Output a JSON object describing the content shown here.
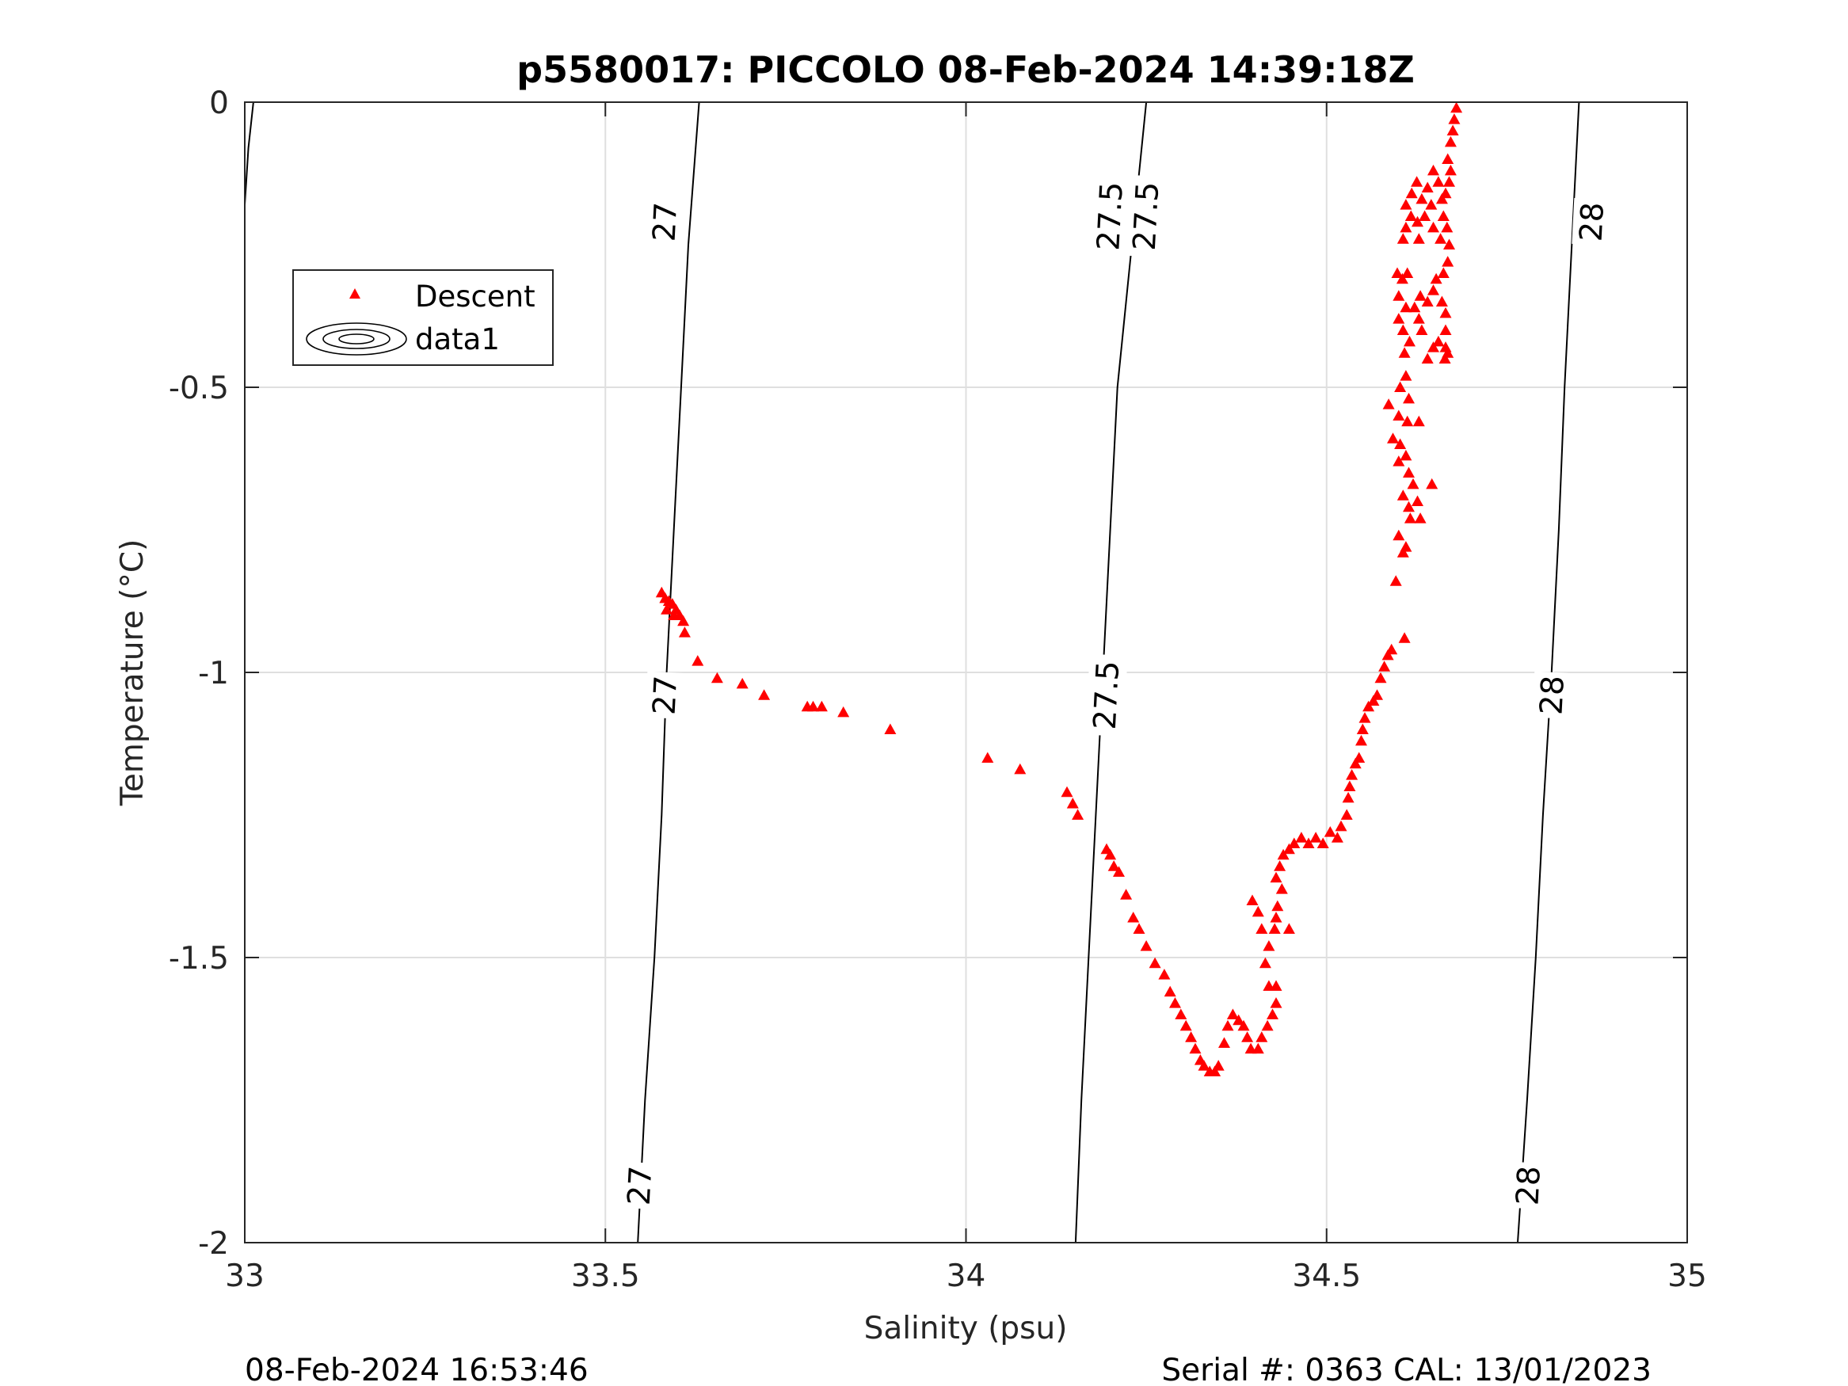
{
  "figure": {
    "footer_left": "08-Feb-2024 16:53:46",
    "footer_right": "Serial #: 0363  CAL: 13/01/2023"
  },
  "legend": {
    "location": "upper-left",
    "items": [
      {
        "label": "Descent",
        "marker": "red-triangle-icon"
      },
      {
        "label": "data1",
        "marker": "contour-ellipses-icon"
      }
    ]
  },
  "chart_data": {
    "type": "scatter",
    "title": "p5580017: PICCOLO 08-Feb-2024 14:39:18Z",
    "xlabel": "Salinity (psu)",
    "ylabel": "Temperature (°C)",
    "xlim": [
      33,
      35
    ],
    "ylim": [
      -2,
      0
    ],
    "xticks": [
      "33",
      "33.5",
      "34",
      "34.5",
      "35"
    ],
    "yticks": [
      "0",
      "-0.5",
      "-1",
      "-1.5",
      "-2"
    ],
    "grid": true,
    "colors": {
      "descent": "#ff0000",
      "contour": "#000000",
      "grid": "#dfdfdf"
    },
    "contours": [
      {
        "label": "27",
        "points": [
          [
            33.545,
            -2
          ],
          [
            33.555,
            -1.75
          ],
          [
            33.568,
            -1.5
          ],
          [
            33.578,
            -1.25
          ],
          [
            33.585,
            -1.0
          ],
          [
            33.595,
            -0.75
          ],
          [
            33.605,
            -0.5
          ],
          [
            33.615,
            -0.25
          ],
          [
            33.63,
            0
          ]
        ],
        "label_positions": [
          [
            33.583,
            -1.04
          ],
          [
            33.583,
            -0.21
          ],
          [
            33.548,
            -1.9
          ]
        ]
      },
      {
        "label": "27.5",
        "points": [
          [
            34.152,
            -2
          ],
          [
            34.16,
            -1.75
          ],
          [
            34.17,
            -1.5
          ],
          [
            34.18,
            -1.25
          ],
          [
            34.19,
            -1.0
          ],
          [
            34.2,
            -0.75
          ],
          [
            34.21,
            -0.5
          ],
          [
            34.23,
            -0.25
          ],
          [
            34.25,
            0
          ]
        ],
        "label_positions": [
          [
            34.195,
            -1.04
          ],
          [
            34.25,
            -0.2
          ],
          [
            34.2,
            -0.2
          ]
        ]
      },
      {
        "label": "28",
        "points": [
          [
            34.765,
            -2
          ],
          [
            34.778,
            -1.75
          ],
          [
            34.79,
            -1.5
          ],
          [
            34.8,
            -1.25
          ],
          [
            34.812,
            -1.0
          ],
          [
            34.822,
            -0.75
          ],
          [
            34.83,
            -0.5
          ],
          [
            34.84,
            -0.25
          ],
          [
            34.85,
            0
          ]
        ],
        "label_positions": [
          [
            34.813,
            -1.04
          ],
          [
            34.868,
            -0.21
          ],
          [
            34.78,
            -1.9
          ]
        ]
      },
      {
        "label": "",
        "points": [
          [
            33.0,
            -0.18
          ],
          [
            33.005,
            -0.08
          ],
          [
            33.012,
            0
          ]
        ],
        "label_positions": []
      }
    ],
    "series": [
      {
        "name": "Descent",
        "points": [
          [
            34.68,
            -0.01
          ],
          [
            34.677,
            -0.03
          ],
          [
            34.675,
            -0.05
          ],
          [
            34.672,
            -0.07
          ],
          [
            34.668,
            -0.1
          ],
          [
            34.672,
            -0.12
          ],
          [
            34.67,
            -0.14
          ],
          [
            34.665,
            -0.16
          ],
          [
            34.66,
            -0.17
          ],
          [
            34.655,
            -0.14
          ],
          [
            34.648,
            -0.12
          ],
          [
            34.64,
            -0.15
          ],
          [
            34.632,
            -0.17
          ],
          [
            34.625,
            -0.14
          ],
          [
            34.618,
            -0.16
          ],
          [
            34.61,
            -0.18
          ],
          [
            34.645,
            -0.18
          ],
          [
            34.662,
            -0.2
          ],
          [
            34.667,
            -0.22
          ],
          [
            34.658,
            -0.24
          ],
          [
            34.648,
            -0.22
          ],
          [
            34.636,
            -0.2
          ],
          [
            34.626,
            -0.21
          ],
          [
            34.617,
            -0.2
          ],
          [
            34.61,
            -0.22
          ],
          [
            34.606,
            -0.24
          ],
          [
            34.628,
            -0.24
          ],
          [
            34.67,
            -0.25
          ],
          [
            34.668,
            -0.28
          ],
          [
            34.662,
            -0.3
          ],
          [
            34.652,
            -0.31
          ],
          [
            34.648,
            -0.33
          ],
          [
            34.64,
            -0.35
          ],
          [
            34.63,
            -0.34
          ],
          [
            34.622,
            -0.36
          ],
          [
            34.66,
            -0.35
          ],
          [
            34.665,
            -0.37
          ],
          [
            34.665,
            -0.4
          ],
          [
            34.665,
            -0.43
          ],
          [
            34.664,
            -0.45
          ],
          [
            34.668,
            -0.44
          ],
          [
            34.655,
            -0.42
          ],
          [
            34.648,
            -0.43
          ],
          [
            34.598,
            -0.3
          ],
          [
            34.605,
            -0.31
          ],
          [
            34.612,
            -0.3
          ],
          [
            34.6,
            -0.34
          ],
          [
            34.61,
            -0.36
          ],
          [
            34.6,
            -0.38
          ],
          [
            34.606,
            -0.4
          ],
          [
            34.615,
            -0.42
          ],
          [
            34.608,
            -0.44
          ],
          [
            34.628,
            -0.38
          ],
          [
            34.632,
            -0.4
          ],
          [
            34.64,
            -0.45
          ],
          [
            34.61,
            -0.48
          ],
          [
            34.602,
            -0.5
          ],
          [
            34.614,
            -0.52
          ],
          [
            34.6,
            -0.55
          ],
          [
            34.586,
            -0.53
          ],
          [
            34.612,
            -0.56
          ],
          [
            34.628,
            -0.56
          ],
          [
            34.592,
            -0.59
          ],
          [
            34.602,
            -0.6
          ],
          [
            34.61,
            -0.62
          ],
          [
            34.6,
            -0.63
          ],
          [
            34.614,
            -0.65
          ],
          [
            34.62,
            -0.67
          ],
          [
            34.646,
            -0.67
          ],
          [
            34.606,
            -0.69
          ],
          [
            34.614,
            -0.71
          ],
          [
            34.626,
            -0.7
          ],
          [
            34.616,
            -0.73
          ],
          [
            34.63,
            -0.73
          ],
          [
            34.6,
            -0.76
          ],
          [
            34.61,
            -0.78
          ],
          [
            34.606,
            -0.79
          ],
          [
            34.596,
            -0.84
          ],
          [
            34.608,
            -0.94
          ],
          [
            34.59,
            -0.96
          ],
          [
            34.585,
            -0.97
          ],
          [
            34.58,
            -0.99
          ],
          [
            34.575,
            -1.01
          ],
          [
            34.57,
            -1.04
          ],
          [
            34.565,
            -1.05
          ],
          [
            34.558,
            -1.06
          ],
          [
            34.553,
            -1.08
          ],
          [
            34.55,
            -1.1
          ],
          [
            34.548,
            -1.12
          ],
          [
            34.545,
            -1.15
          ],
          [
            34.54,
            -1.16
          ],
          [
            34.535,
            -1.18
          ],
          [
            34.532,
            -1.2
          ],
          [
            34.53,
            -1.22
          ],
          [
            34.528,
            -1.25
          ],
          [
            34.52,
            -1.27
          ],
          [
            34.515,
            -1.29
          ],
          [
            34.505,
            -1.28
          ],
          [
            34.495,
            -1.3
          ],
          [
            34.485,
            -1.29
          ],
          [
            34.475,
            -1.3
          ],
          [
            34.465,
            -1.29
          ],
          [
            34.455,
            -1.3
          ],
          [
            34.448,
            -1.31
          ],
          [
            34.44,
            -1.32
          ],
          [
            34.435,
            -1.34
          ],
          [
            34.43,
            -1.36
          ],
          [
            34.438,
            -1.38
          ],
          [
            34.432,
            -1.41
          ],
          [
            34.43,
            -1.43
          ],
          [
            34.428,
            -1.45
          ],
          [
            34.42,
            -1.48
          ],
          [
            34.415,
            -1.51
          ],
          [
            34.448,
            -1.45
          ],
          [
            34.397,
            -1.4
          ],
          [
            34.405,
            -1.42
          ],
          [
            34.41,
            -1.45
          ],
          [
            34.42,
            -1.55
          ],
          [
            34.43,
            -1.55
          ],
          [
            34.43,
            -1.58
          ],
          [
            34.425,
            -1.6
          ],
          [
            34.418,
            -1.62
          ],
          [
            34.41,
            -1.64
          ],
          [
            34.405,
            -1.66
          ],
          [
            34.395,
            -1.66
          ],
          [
            34.39,
            -1.64
          ],
          [
            34.385,
            -1.62
          ],
          [
            34.378,
            -1.61
          ],
          [
            34.37,
            -1.6
          ],
          [
            34.363,
            -1.62
          ],
          [
            34.358,
            -1.65
          ],
          [
            34.35,
            -1.69
          ],
          [
            34.345,
            -1.7
          ],
          [
            34.338,
            -1.7
          ],
          [
            34.33,
            -1.69
          ],
          [
            34.325,
            -1.68
          ],
          [
            34.318,
            -1.66
          ],
          [
            34.312,
            -1.64
          ],
          [
            34.305,
            -1.62
          ],
          [
            34.298,
            -1.6
          ],
          [
            34.29,
            -1.58
          ],
          [
            34.283,
            -1.56
          ],
          [
            34.275,
            -1.53
          ],
          [
            34.262,
            -1.51
          ],
          [
            34.25,
            -1.48
          ],
          [
            34.24,
            -1.45
          ],
          [
            34.232,
            -1.43
          ],
          [
            34.222,
            -1.39
          ],
          [
            34.212,
            -1.35
          ],
          [
            34.205,
            -1.34
          ],
          [
            34.2,
            -1.32
          ],
          [
            34.195,
            -1.31
          ],
          [
            34.155,
            -1.25
          ],
          [
            34.148,
            -1.23
          ],
          [
            34.14,
            -1.21
          ],
          [
            34.075,
            -1.17
          ],
          [
            34.03,
            -1.15
          ],
          [
            33.895,
            -1.1
          ],
          [
            33.83,
            -1.07
          ],
          [
            33.8,
            -1.06
          ],
          [
            33.788,
            -1.06
          ],
          [
            33.78,
            -1.06
          ],
          [
            33.72,
            -1.04
          ],
          [
            33.69,
            -1.02
          ],
          [
            33.655,
            -1.01
          ],
          [
            33.628,
            -0.98
          ],
          [
            33.61,
            -0.93
          ],
          [
            33.608,
            -0.91
          ],
          [
            33.603,
            -0.9
          ],
          [
            33.598,
            -0.89
          ],
          [
            33.593,
            -0.88
          ],
          [
            33.588,
            -0.875
          ],
          [
            33.583,
            -0.87
          ],
          [
            33.578,
            -0.86
          ],
          [
            33.585,
            -0.89
          ],
          [
            33.595,
            -0.9
          ]
        ]
      }
    ]
  }
}
